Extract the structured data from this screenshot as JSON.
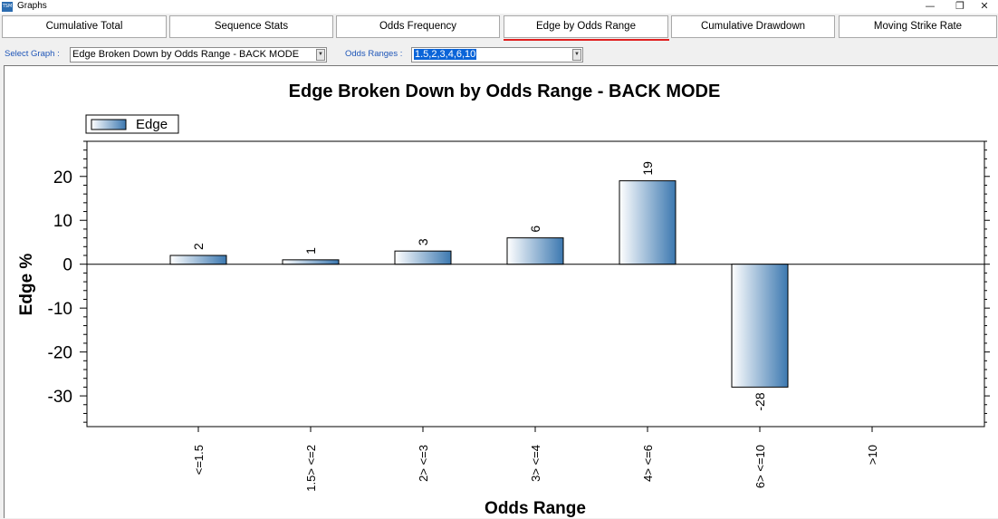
{
  "window": {
    "title": "Graphs",
    "icon_text": "TSM"
  },
  "window_controls": {
    "minimize": "—",
    "restore": "❐",
    "close": "✕"
  },
  "tabs": [
    {
      "label": "Cumulative Total"
    },
    {
      "label": "Sequence Stats"
    },
    {
      "label": "Odds Frequency"
    },
    {
      "label": "Edge by Odds Range",
      "active": true
    },
    {
      "label": "Cumulative Drawdown"
    },
    {
      "label": "Moving Strike Rate"
    }
  ],
  "controls": {
    "select_graph_label": "Select Graph :",
    "select_graph_value": "Edge Broken Down by Odds Range - BACK MODE",
    "odds_ranges_label": "Odds Ranges :",
    "odds_ranges_value": "1.5,2,3,4,6,10"
  },
  "colors": {
    "bar_light": "#ffffff",
    "bar_dark": "#3c78b0",
    "accent_underline": "#e02020",
    "label_blue": "#1f56b8"
  },
  "chart_data": {
    "type": "bar",
    "title": "Edge Broken Down by Odds Range - BACK MODE",
    "xlabel": "Odds Range",
    "ylabel": "Edge %",
    "legend": {
      "entries": [
        "Edge"
      ],
      "placement": "top-left"
    },
    "categories": [
      "<=1.5",
      "1.5> <=2",
      "2> <=3",
      "3> <=4",
      "4> <=6",
      "6> <=10",
      ">10"
    ],
    "series": [
      {
        "name": "Edge",
        "values": [
          2,
          1,
          3,
          6,
          19,
          -28,
          null
        ]
      }
    ],
    "data_labels": [
      "2",
      "1",
      "3",
      "6",
      "19",
      "-28",
      ""
    ],
    "yticks": [
      20,
      10,
      0,
      -10,
      -20,
      -30
    ],
    "ytick_labels": [
      "20",
      "10",
      "0",
      "-10",
      "-20",
      "-30"
    ],
    "ylim": [
      -37,
      28
    ],
    "grid": false
  }
}
